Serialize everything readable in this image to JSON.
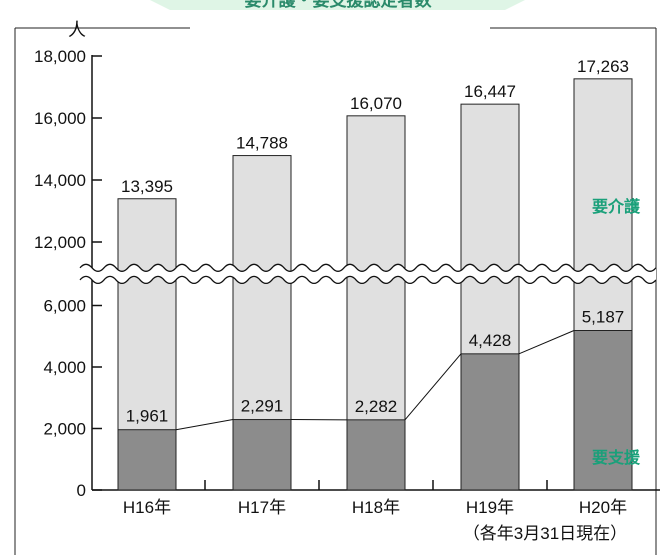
{
  "header": {
    "partial_title": "要介護・要支援認定者数"
  },
  "chart_data": {
    "type": "bar",
    "stacked": true,
    "broken_axis": true,
    "unit_label": "人",
    "categories": [
      "H16年",
      "H17年",
      "H18年",
      "H19年",
      "H20年"
    ],
    "note": "（各年3月31日現在）",
    "y_ticks_lower": [
      "0",
      "2,000",
      "4,000",
      "6,000"
    ],
    "y_ticks_upper": [
      "12,000",
      "14,000",
      "16,000",
      "18,000"
    ],
    "lower_range": [
      0,
      6800
    ],
    "upper_range": [
      11200,
      18000
    ],
    "series": [
      {
        "name": "要支援",
        "values": [
          1961,
          2291,
          2282,
          4428,
          5187
        ],
        "labels": [
          "1,961",
          "2,291",
          "2,282",
          "4,428",
          "5,187"
        ],
        "color": "#8c8c8c"
      },
      {
        "name": "要介護",
        "totals": [
          13395,
          14788,
          16070,
          16447,
          17263
        ],
        "labels": [
          "13,395",
          "14,788",
          "16,070",
          "16,447",
          "17,263"
        ],
        "color": "#e0e0e0"
      }
    ],
    "legend_color": "#1aa07a",
    "title_color": "#2a8a6a"
  }
}
